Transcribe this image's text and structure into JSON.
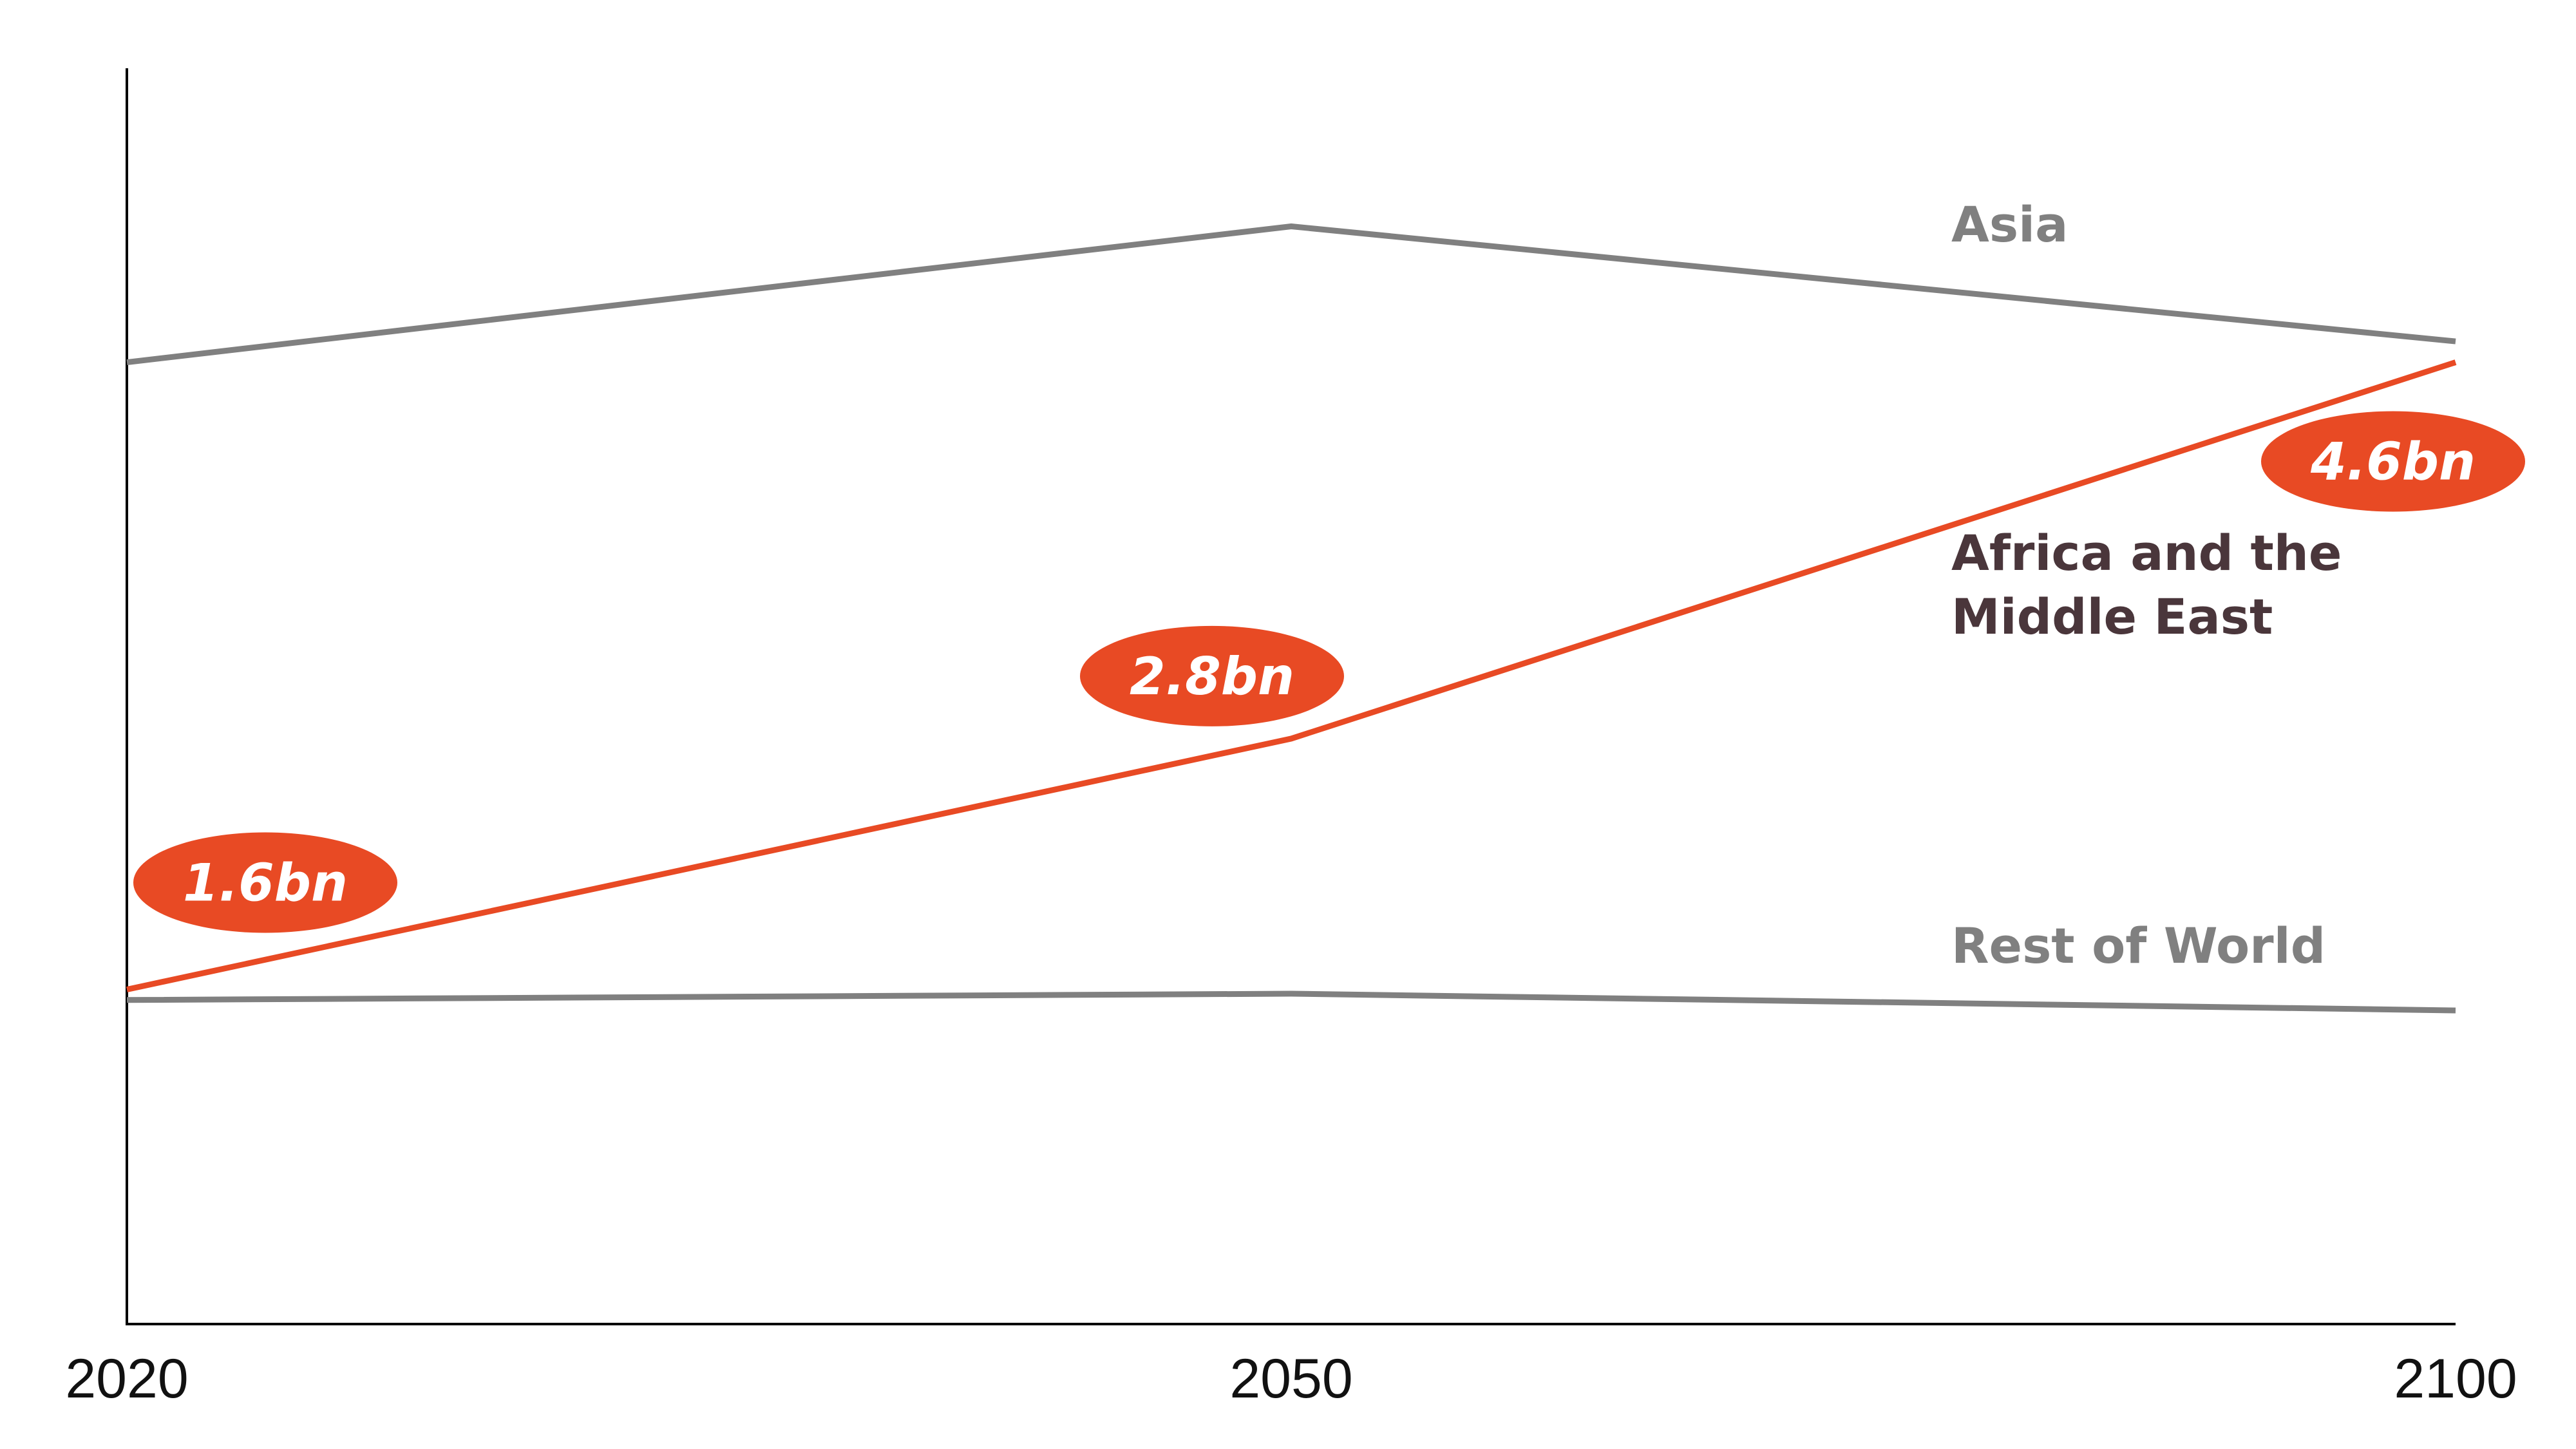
{
  "chart_data": {
    "type": "line",
    "categories": [
      "2020",
      "2050",
      "2100"
    ],
    "ylim": [
      0,
      6
    ],
    "series": [
      {
        "name": "Asia",
        "color": "#808080",
        "values": [
          4.6,
          5.25,
          4.7
        ]
      },
      {
        "name": "Africa and the Middle East",
        "color": "#e84a24",
        "values": [
          1.6,
          2.8,
          4.6
        ],
        "value_labels": [
          "1.6bn",
          "2.8bn",
          "4.6bn"
        ]
      },
      {
        "name": "Rest of World",
        "color": "#808080",
        "values": [
          1.55,
          1.58,
          1.5
        ]
      }
    ]
  }
}
